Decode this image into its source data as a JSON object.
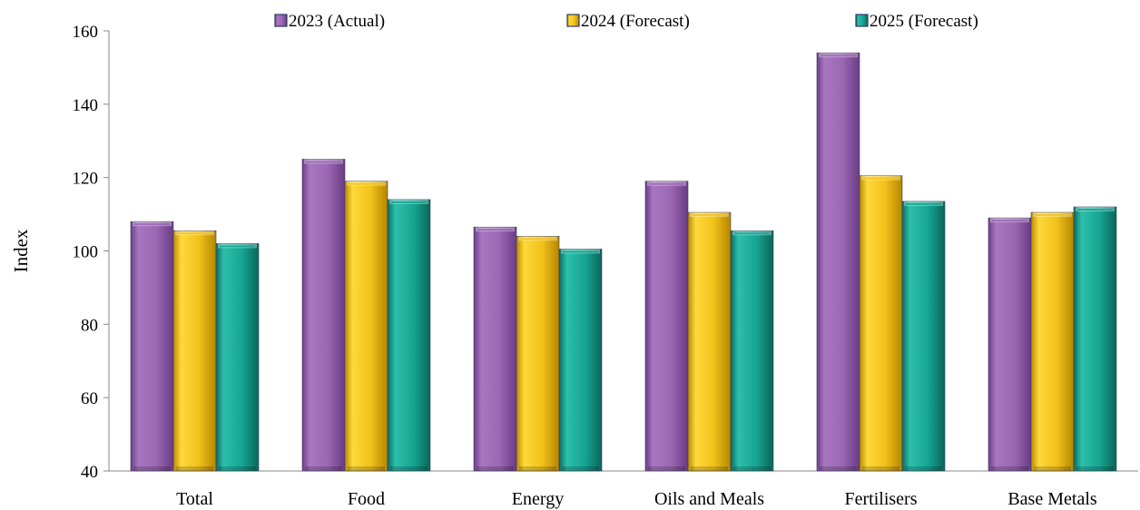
{
  "chart_data": {
    "type": "bar",
    "ylabel": "Index",
    "xlabel": "",
    "ylim": [
      40,
      160
    ],
    "yticks": [
      40,
      60,
      80,
      100,
      120,
      140,
      160
    ],
    "grid": false,
    "legend_position": "top",
    "categories": [
      "Total",
      "Food",
      "Energy",
      "Oils and Meals",
      "Fertilisers",
      "Base Metals"
    ],
    "series": [
      {
        "name": "2023 (Actual)",
        "color": "#9b67b3",
        "values": [
          108,
          125,
          106.5,
          119,
          154,
          109
        ]
      },
      {
        "name": "2024 (Forecast)",
        "color": "#f2c21b",
        "values": [
          105.5,
          119,
          104,
          110.5,
          120.5,
          110.5
        ]
      },
      {
        "name": "2025 (Forecast)",
        "color": "#17a593",
        "values": [
          102,
          114,
          100.5,
          105.5,
          113.5,
          112
        ]
      }
    ]
  }
}
